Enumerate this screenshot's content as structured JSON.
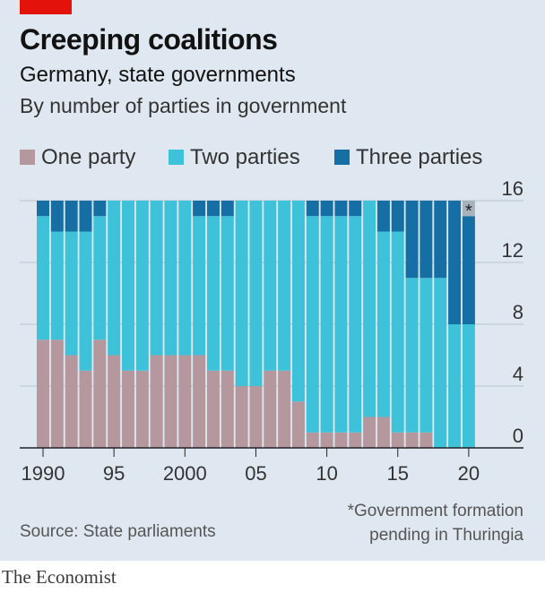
{
  "header": {
    "title": "Creeping coalitions",
    "subtitle": "Germany, state governments",
    "description": "By number of parties in government"
  },
  "footer": {
    "source": "Source: State parliaments",
    "footnote_line1": "*Government formation",
    "footnote_line2": "pending in Thuringia",
    "brand": "The Economist"
  },
  "colors": {
    "background": "#dfe8f0",
    "brand_red": "#e3120b",
    "one_party": "#b5979e",
    "two_parties": "#3ec2d9",
    "three_parties": "#166fa4",
    "pending": "#a7b2ba",
    "grid": "#b3c3d0"
  },
  "chart_data": {
    "type": "bar",
    "stacked": true,
    "categories": [
      "1990",
      "1991",
      "1992",
      "1993",
      "1994",
      "1995",
      "1996",
      "1997",
      "1998",
      "1999",
      "2000",
      "2001",
      "2002",
      "2003",
      "2004",
      "2005",
      "2006",
      "2007",
      "2008",
      "2009",
      "2010",
      "2011",
      "2012",
      "2013",
      "2014",
      "2015",
      "2016",
      "2017",
      "2018",
      "2019",
      "2020"
    ],
    "series": [
      {
        "name": "One party",
        "color": "#b5979e",
        "values": [
          7,
          7,
          6,
          5,
          7,
          6,
          5,
          5,
          6,
          6,
          6,
          6,
          5,
          5,
          4,
          4,
          5,
          5,
          3,
          1,
          1,
          1,
          1,
          2,
          2,
          1,
          1,
          1,
          0,
          0,
          0
        ]
      },
      {
        "name": "Two parties",
        "color": "#3ec2d9",
        "values": [
          8,
          7,
          8,
          9,
          8,
          10,
          11,
          11,
          10,
          10,
          10,
          9,
          10,
          10,
          12,
          12,
          11,
          11,
          13,
          14,
          14,
          14,
          14,
          14,
          12,
          13,
          10,
          10,
          11,
          8,
          8
        ]
      },
      {
        "name": "Three parties",
        "color": "#166fa4",
        "values": [
          1,
          2,
          2,
          2,
          1,
          0,
          0,
          0,
          0,
          0,
          0,
          1,
          1,
          1,
          0,
          0,
          0,
          0,
          0,
          1,
          1,
          1,
          1,
          0,
          2,
          2,
          5,
          5,
          5,
          8,
          7
        ]
      }
    ],
    "pending": {
      "category": "2020",
      "value": 1,
      "marker": "*"
    },
    "x_tick_labels": [
      {
        "index": 0,
        "label": "1990"
      },
      {
        "index": 5,
        "label": "95"
      },
      {
        "index": 10,
        "label": "2000"
      },
      {
        "index": 15,
        "label": "05"
      },
      {
        "index": 20,
        "label": "10"
      },
      {
        "index": 25,
        "label": "15"
      },
      {
        "index": 30,
        "label": "20"
      }
    ],
    "y_ticks": [
      0,
      4,
      8,
      12,
      16
    ],
    "ylim": [
      0,
      16
    ],
    "y_axis_side": "right",
    "grid": true,
    "legend_position": "top-left"
  }
}
